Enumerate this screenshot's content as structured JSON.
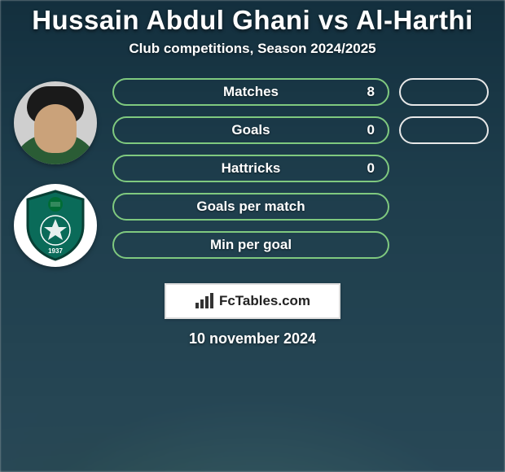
{
  "title": "Hussain Abdul Ghani vs Al-Harthi",
  "subtitle": "Club competitions, Season 2024/2025",
  "date": "10 november 2024",
  "brand": "FcTables.com",
  "colors": {
    "player1_border": "#7fc97f",
    "player2_border": "#e8e8e8",
    "text": "#ffffff",
    "title_shadow": "rgba(0,0,0,0.6)"
  },
  "layout": {
    "pill_left_width": 340,
    "pill_right_width": 110,
    "pill_height": 34,
    "row_gap": 13
  },
  "player_avatar": {
    "type": "photo-circle",
    "bg": "#cfcfcf"
  },
  "club_badge": {
    "shield_fill": "#0a6b59",
    "shield_stroke": "#083f34",
    "accent": "#ffffff",
    "flag_green": "#006c35"
  },
  "stats": [
    {
      "label": "Matches",
      "left_value": "8",
      "right_shown": true,
      "right_value": ""
    },
    {
      "label": "Goals",
      "left_value": "0",
      "right_shown": true,
      "right_value": ""
    },
    {
      "label": "Hattricks",
      "left_value": "0",
      "right_shown": false,
      "right_value": ""
    },
    {
      "label": "Goals per match",
      "left_value": "",
      "right_shown": false,
      "right_value": ""
    },
    {
      "label": "Min per goal",
      "left_value": "",
      "right_shown": false,
      "right_value": ""
    }
  ],
  "chart_meta": {
    "type": "infographic",
    "background_color_top": "#1a3a4a",
    "background_color_bottom": "#3a6070",
    "font_family": "sans-serif",
    "title_fontsize": 33,
    "subtitle_fontsize": 17,
    "label_fontsize": 17
  }
}
